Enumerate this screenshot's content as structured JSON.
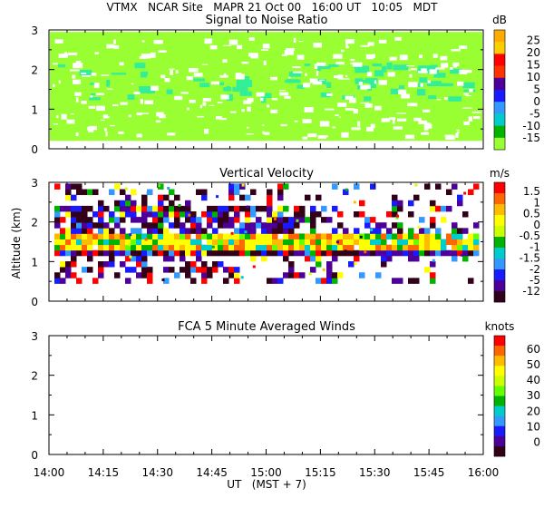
{
  "header": {
    "line": "VTMX   NCAR Site   MAPR 21 Oct 00   16:00 UT   10:05   MDT"
  },
  "colors": {
    "snr_fill": "#99ff33",
    "palette": [
      "#33001a",
      "#4d0099",
      "#1a1aff",
      "#3399ff",
      "#00cccc",
      "#00b300",
      "#66ff00",
      "#ccff00",
      "#ffff00",
      "#ffbb00",
      "#ff6600",
      "#ff0000"
    ]
  },
  "chart_data": [
    {
      "type": "heatmap",
      "title": "Signal to Noise Ratio",
      "ylabel": "",
      "ylim": [
        0,
        3
      ],
      "yticks": [
        "0",
        "1",
        "2",
        "3"
      ],
      "colorbar": {
        "unit": "dB",
        "labels": [
          "25",
          "20",
          "15",
          "10",
          "5",
          "0",
          "-5",
          "-10",
          "-15"
        ],
        "colors": [
          "#ffaa00",
          "#ffcc00",
          "#ff0000",
          "#ff3300",
          "#4d0099",
          "#1a1aff",
          "#3399ff",
          "#00cccc",
          "#00b300",
          "#99ff33"
        ]
      }
    },
    {
      "type": "heatmap",
      "title": "Vertical Velocity",
      "ylabel": "Altitude (km)",
      "ylim": [
        0,
        3
      ],
      "yticks": [
        "0",
        "1",
        "2",
        "3"
      ],
      "colorbar": {
        "unit": "m/s",
        "labels": [
          "1.5",
          "1",
          "0.5",
          "0",
          "-0.5",
          "-1",
          "-1.5",
          "-2",
          "-5",
          "-12"
        ],
        "colors": [
          "#ff0000",
          "#ff6600",
          "#ffbb00",
          "#ffff00",
          "#ccff00",
          "#00b300",
          "#00cccc",
          "#3399ff",
          "#1a1aff",
          "#4d0099",
          "#33001a"
        ]
      }
    },
    {
      "type": "heatmap",
      "title": "FCA 5 Minute Averaged Winds",
      "ylabel": "",
      "ylim": [
        0,
        3
      ],
      "yticks": [
        "0",
        "1",
        "2",
        "3"
      ],
      "colorbar": {
        "unit": "knots",
        "labels": [
          "60",
          "50",
          "40",
          "30",
          "20",
          "10",
          "0"
        ],
        "colors": [
          "#ff0000",
          "#ff6600",
          "#ffbb00",
          "#ffff00",
          "#ccff00",
          "#66ff00",
          "#00b300",
          "#00cccc",
          "#3399ff",
          "#1a1aff",
          "#4d0099",
          "#33001a"
        ]
      }
    }
  ],
  "x_axis": {
    "ticks": [
      "14:00",
      "14:15",
      "14:30",
      "14:45",
      "15:00",
      "15:15",
      "15:30",
      "15:45",
      "16:00"
    ],
    "label": "UT   (MST + 7)"
  }
}
